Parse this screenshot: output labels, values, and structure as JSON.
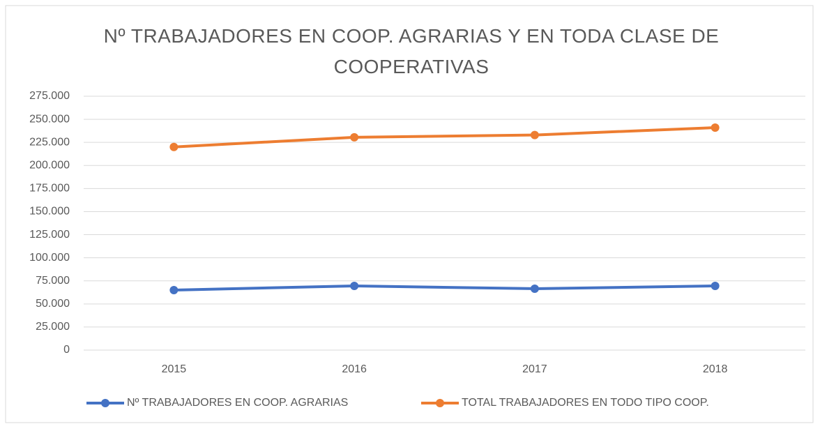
{
  "chart_data": {
    "type": "line",
    "title": "Nº TRABAJADORES EN COOP. AGRARIAS Y EN TODA CLASE DE COOPERATIVAS",
    "categories": [
      "2015",
      "2016",
      "2017",
      "2018"
    ],
    "series": [
      {
        "name": "Nº TRABAJADORES EN COOP. AGRARIAS",
        "color": "#4472c4",
        "values": [
          65000,
          69500,
          66500,
          69500
        ]
      },
      {
        "name": "TOTAL TRABAJADORES EN TODO TIPO COOP.",
        "color": "#ed7d31",
        "values": [
          220000,
          230500,
          233000,
          241000
        ]
      }
    ],
    "ylim": [
      0,
      275000
    ],
    "yticks": [
      0,
      {
        "value": 25000,
        "label": "25.000"
      },
      {
        "value": 50000,
        "label": "50.000"
      },
      {
        "value": 75000,
        "label": "75.000"
      },
      {
        "value": 100000,
        "label": "100.000"
      },
      {
        "value": 125000,
        "label": "125.000"
      },
      {
        "value": 150000,
        "label": "150.000"
      },
      {
        "value": 175000,
        "label": "175.000"
      },
      {
        "value": 200000,
        "label": "200.000"
      },
      {
        "value": 225000,
        "label": "225.000"
      },
      {
        "value": 250000,
        "label": "250.000"
      },
      {
        "value": 275000,
        "label": "275.000"
      }
    ],
    "grid": true,
    "legend": "bottom"
  }
}
